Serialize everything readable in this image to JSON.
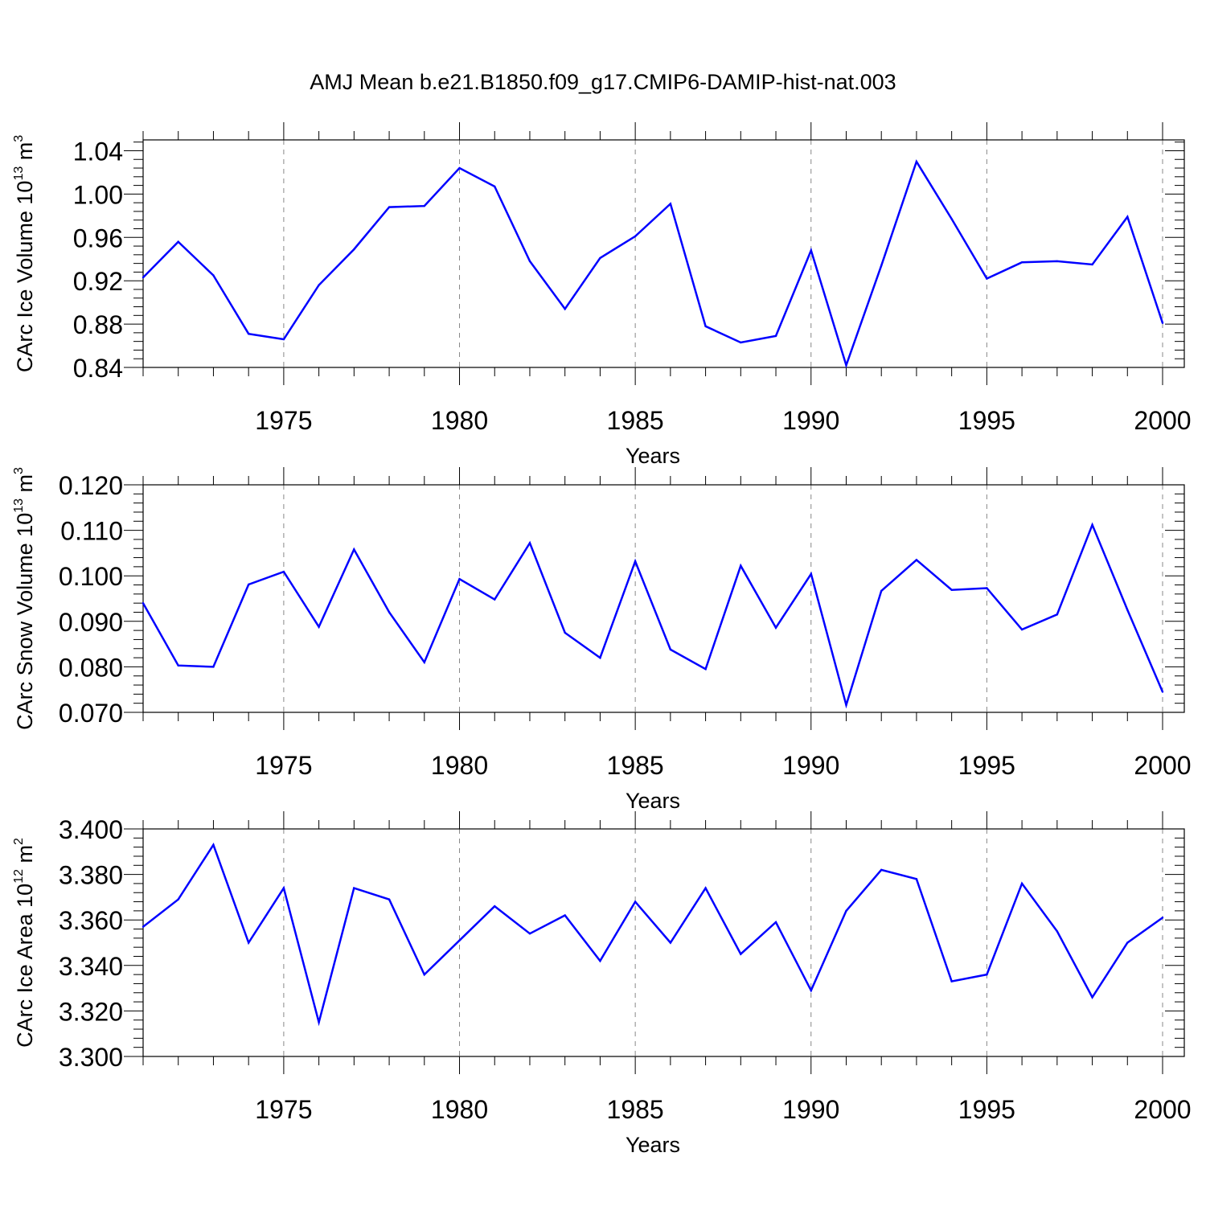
{
  "title": "AMJ Mean b.e21.B1850.f09_g17.CMIP6-DAMIP-hist-nat.003",
  "colors": {
    "line": "#0000ff",
    "axis": "#000000",
    "grid": "#888888"
  },
  "chart_data": [
    {
      "type": "line",
      "ylabel": "CArc Ice Volume 10",
      "ylabel_exp": "13",
      "ylabel_unit": " m",
      "ylabel_unit_exp": "3",
      "xlabel": "Years",
      "xlim": [
        1971,
        2000
      ],
      "ylim": [
        0.84,
        1.05
      ],
      "yticks": [
        0.84,
        0.88,
        0.92,
        0.96,
        1.0,
        1.04
      ],
      "ytick_labels": [
        "0.84",
        "0.88",
        "0.92",
        "0.96",
        "1.00",
        "1.04"
      ],
      "xticks": [
        1975,
        1980,
        1985,
        1990,
        1995,
        2000
      ],
      "xtick_labels": [
        "1975",
        "1980",
        "1985",
        "1990",
        "1995",
        "2000"
      ],
      "grid": "vertical dashed at major x ticks",
      "x": [
        1971,
        1972,
        1973,
        1974,
        1975,
        1976,
        1977,
        1978,
        1979,
        1980,
        1981,
        1982,
        1983,
        1984,
        1985,
        1986,
        1987,
        1988,
        1989,
        1990,
        1991,
        1992,
        1993,
        1994,
        1995,
        1996,
        1997,
        1998,
        1999,
        2000
      ],
      "values": [
        0.923,
        0.956,
        0.925,
        0.871,
        0.866,
        0.916,
        0.949,
        0.988,
        0.989,
        1.024,
        1.007,
        0.938,
        0.894,
        0.941,
        0.961,
        0.991,
        0.878,
        0.863,
        0.869,
        0.948,
        0.842,
        0.934,
        1.03,
        0.977,
        0.922,
        0.937,
        0.938,
        0.935,
        0.979,
        0.881
      ]
    },
    {
      "type": "line",
      "ylabel": "CArc Snow Volume 10",
      "ylabel_exp": "13",
      "ylabel_unit": " m",
      "ylabel_unit_exp": "3",
      "xlabel": "Years",
      "xlim": [
        1971,
        2000
      ],
      "ylim": [
        0.07,
        0.12
      ],
      "yticks": [
        0.07,
        0.08,
        0.09,
        0.1,
        0.11,
        0.12
      ],
      "ytick_labels": [
        "0.070",
        "0.080",
        "0.090",
        "0.100",
        "0.110",
        "0.120"
      ],
      "xticks": [
        1975,
        1980,
        1985,
        1990,
        1995,
        2000
      ],
      "xtick_labels": [
        "1975",
        "1980",
        "1985",
        "1990",
        "1995",
        "2000"
      ],
      "grid": "vertical dashed at major x ticks",
      "x": [
        1971,
        1972,
        1973,
        1974,
        1975,
        1976,
        1977,
        1978,
        1979,
        1980,
        1981,
        1982,
        1983,
        1984,
        1985,
        1986,
        1987,
        1988,
        1989,
        1990,
        1991,
        1992,
        1993,
        1994,
        1995,
        1996,
        1997,
        1998,
        1999,
        2000
      ],
      "values": [
        0.094,
        0.0803,
        0.08,
        0.0981,
        0.1009,
        0.0888,
        0.1058,
        0.092,
        0.081,
        0.0993,
        0.0948,
        0.1072,
        0.0875,
        0.082,
        0.1032,
        0.0838,
        0.0795,
        0.1022,
        0.0886,
        0.1004,
        0.0716,
        0.0967,
        0.1035,
        0.0969,
        0.0973,
        0.0882,
        0.0915,
        0.1112,
        0.0925,
        0.0745
      ]
    },
    {
      "type": "line",
      "ylabel": "CArc Ice Area 10",
      "ylabel_exp": "12",
      "ylabel_unit": " m",
      "ylabel_unit_exp": "2",
      "xlabel": "Years",
      "xlim": [
        1971,
        2000
      ],
      "ylim": [
        3.3,
        3.4
      ],
      "yticks": [
        3.3,
        3.32,
        3.34,
        3.36,
        3.38,
        3.4
      ],
      "ytick_labels": [
        "3.300",
        "3.320",
        "3.340",
        "3.360",
        "3.380",
        "3.400"
      ],
      "xticks": [
        1975,
        1980,
        1985,
        1990,
        1995,
        2000
      ],
      "xtick_labels": [
        "1975",
        "1980",
        "1985",
        "1990",
        "1995",
        "2000"
      ],
      "grid": "vertical dashed at major x ticks",
      "x": [
        1971,
        1972,
        1973,
        1974,
        1975,
        1976,
        1977,
        1978,
        1979,
        1980,
        1981,
        1982,
        1983,
        1984,
        1985,
        1986,
        1987,
        1988,
        1989,
        1990,
        1991,
        1992,
        1993,
        1994,
        1995,
        1996,
        1997,
        1998,
        1999,
        2000
      ],
      "values": [
        3.357,
        3.369,
        3.393,
        3.35,
        3.374,
        3.315,
        3.374,
        3.369,
        3.336,
        3.351,
        3.366,
        3.354,
        3.362,
        3.342,
        3.368,
        3.35,
        3.374,
        3.345,
        3.359,
        3.329,
        3.364,
        3.382,
        3.378,
        3.333,
        3.336,
        3.376,
        3.355,
        3.326,
        3.35,
        3.361
      ]
    }
  ]
}
